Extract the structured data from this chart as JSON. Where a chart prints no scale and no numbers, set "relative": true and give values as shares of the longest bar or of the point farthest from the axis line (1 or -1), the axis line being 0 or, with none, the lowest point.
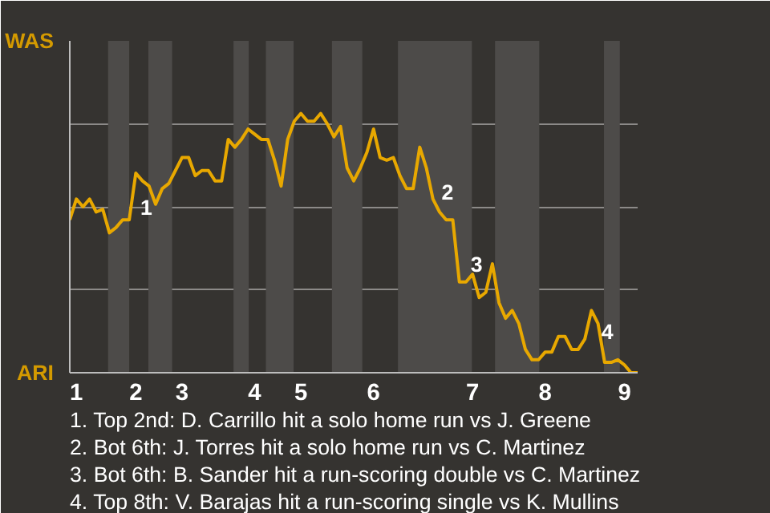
{
  "chart_data": {
    "type": "line",
    "color": "#e8a800",
    "relative": true,
    "categories": [
      null,
      "1",
      null,
      null,
      null,
      null,
      null,
      null,
      null,
      null,
      "2",
      null,
      null,
      null,
      null,
      null,
      null,
      "3",
      null,
      null,
      null,
      null,
      null,
      null,
      null,
      null,
      null,
      null,
      "4",
      null,
      null,
      null,
      null,
      null,
      null,
      "5",
      null,
      null,
      null,
      null,
      null,
      null,
      null,
      null,
      null,
      null,
      "6",
      null,
      null,
      null,
      null,
      null,
      null,
      null,
      null,
      null,
      null,
      null,
      null,
      null,
      null,
      "7",
      null,
      null,
      null,
      null,
      null,
      null,
      null,
      null,
      null,
      null,
      "8",
      null,
      null,
      null,
      null,
      null,
      null,
      null,
      null,
      null,
      null,
      null,
      "9",
      null,
      null
    ],
    "values": [
      0.59,
      0.67,
      0.64,
      0.67,
      0.62,
      0.63,
      0.54,
      0.56,
      0.59,
      0.59,
      0.77,
      0.74,
      0.72,
      0.65,
      0.71,
      0.73,
      0.78,
      0.83,
      0.83,
      0.76,
      0.78,
      0.78,
      0.74,
      0.74,
      0.9,
      0.87,
      0.9,
      0.94,
      0.92,
      0.9,
      0.9,
      0.82,
      0.72,
      0.9,
      0.97,
      1,
      0.97,
      0.97,
      1,
      0.96,
      0.91,
      0.95,
      0.79,
      0.74,
      0.79,
      0.85,
      0.94,
      0.83,
      0.82,
      0.83,
      0.76,
      0.71,
      0.71,
      0.87,
      0.79,
      0.67,
      0.62,
      0.59,
      0.59,
      0.35,
      0.35,
      0.38,
      0.29,
      0.31,
      0.42,
      0.27,
      0.21,
      0.24,
      0.19,
      0.09,
      0.05,
      0.05,
      0.08,
      0.08,
      0.14,
      0.14,
      0.09,
      0.09,
      0.13,
      0.24,
      0.19,
      0.04,
      0.04,
      0.05,
      0.03,
      0,
      0
    ],
    "grid": "y",
    "marker": "none",
    "line_style": "solid",
    "annotations": [
      "WAS",
      "ARI",
      "1",
      "2",
      "3",
      "4",
      "1. Top 2nd: D. Carrillo hit a solo home run vs J. Greene",
      "2. Bot 6th: J. Torres hit a solo home run vs C. Martinez",
      "3. Bot 6th: B. Sander hit a run-scoring double vs C. Martinez",
      "4. Top 8th: V. Barajas hit a run-scoring single vs K. Mullins"
    ]
  }
}
